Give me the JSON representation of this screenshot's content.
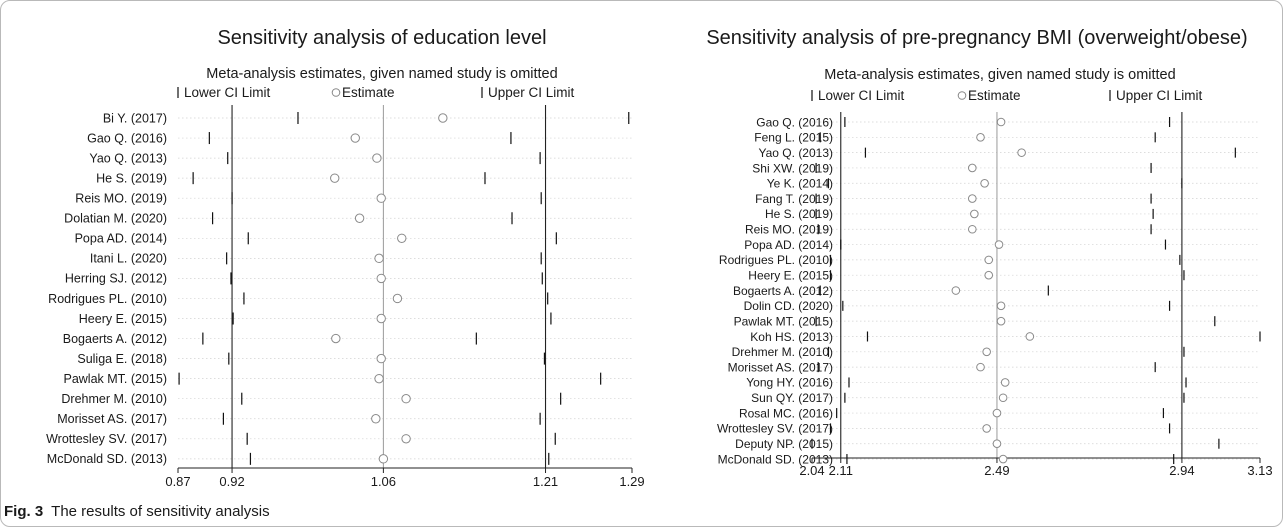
{
  "caption": {
    "label": "Fig. 3",
    "text": "The results of sensitivity analysis"
  },
  "chart_data": [
    {
      "type": "scatter",
      "title": "Sensitivity analysis of education level",
      "subtitle": "Meta-analysis estimates, given named study is omitted",
      "legend": [
        "Lower CI Limit",
        "Estimate",
        "Upper CI Limit"
      ],
      "legend_placement": "top",
      "xlim": [
        0.87,
        1.29
      ],
      "x_ticks": [
        "0.87",
        "0.92",
        "1.06",
        "1.21",
        "1.29"
      ],
      "x_tick_values": [
        0.87,
        0.92,
        1.06,
        1.21,
        1.29
      ],
      "reference_lines": [
        0.92,
        1.06,
        1.21
      ],
      "studies": [
        "Bi Y. (2017)",
        "Gao Q. (2016)",
        "Yao Q. (2013)",
        "He S. (2019)",
        "Reis MO. (2019)",
        "Dolatian M. (2020)",
        "Popa AD. (2014)",
        "Itani L. (2020)",
        "Herring SJ. (2012)",
        "Rodrigues PL. (2010)",
        "Heery E. (2015)",
        "Bogaerts A. (2012)",
        "Suliga E. (2018)",
        "Pawlak MT. (2015)",
        "Drehmer M. (2010)",
        "Morisset AS. (2017)",
        "Wrottesley SV. (2017)",
        "McDonald SD. (2013)"
      ],
      "lower": [
        0.981,
        0.899,
        0.916,
        0.884,
        0.92,
        0.902,
        0.935,
        0.915,
        0.919,
        0.931,
        0.921,
        0.893,
        0.917,
        0.871,
        0.929,
        0.912,
        0.934,
        0.937
      ],
      "estimate": [
        1.115,
        1.034,
        1.054,
        1.015,
        1.058,
        1.038,
        1.077,
        1.056,
        1.058,
        1.073,
        1.058,
        1.016,
        1.058,
        1.056,
        1.081,
        1.053,
        1.081,
        1.06
      ],
      "upper": [
        1.287,
        1.178,
        1.205,
        1.154,
        1.206,
        1.179,
        1.22,
        1.206,
        1.207,
        1.212,
        1.215,
        1.146,
        1.209,
        1.261,
        1.224,
        1.205,
        1.219,
        1.213
      ]
    },
    {
      "type": "scatter",
      "title": "Sensitivity analysis of pre-pregnancy BMI (overweight/obese)",
      "subtitle": "Meta-analysis estimates, given named study is omitted",
      "legend": [
        "Lower CI Limit",
        "Estimate",
        "Upper CI Limit"
      ],
      "legend_placement": "top",
      "xlim": [
        2.04,
        3.13
      ],
      "x_ticks": [
        "2.04",
        "2.11",
        "2.49",
        "2.94",
        "3.13"
      ],
      "x_tick_values": [
        2.04,
        2.11,
        2.49,
        2.94,
        3.13
      ],
      "reference_lines": [
        2.11,
        2.49,
        2.94
      ],
      "studies": [
        "Gao Q. (2016)",
        "Feng L. (2015)",
        "Yao Q. (2013)",
        "Shi XW. (2019)",
        "Ye K. (2014)",
        "Fang T. (2019)",
        "He S. (2019)",
        "Reis MO. (2019)",
        "Popa AD. (2014)",
        "Rodrigues PL. (2010)",
        "Heery E. (2015)",
        "Bogaerts A. (2012)",
        "Dolin CD. (2020)",
        "Pawlak MT. (2015)",
        "Koh HS. (2013)",
        "Drehmer M. (2010)",
        "Morisset AS. (2017)",
        "Yong HY. (2016)",
        "Sun QY. (2017)",
        "Rosal MC. (2016)",
        "Wrottesley SV. (2017)",
        "Deputy NP. (2015)",
        "McDonald SD. (2013)"
      ],
      "lower": [
        2.12,
        2.06,
        2.17,
        2.05,
        2.08,
        2.05,
        2.05,
        2.055,
        2.11,
        2.085,
        2.085,
        2.06,
        2.115,
        2.05,
        2.175,
        2.08,
        2.055,
        2.13,
        2.12,
        2.1,
        2.085,
        2.04,
        2.125
      ],
      "estimate": [
        2.5,
        2.45,
        2.55,
        2.43,
        2.46,
        2.43,
        2.435,
        2.43,
        2.495,
        2.47,
        2.47,
        2.39,
        2.5,
        2.5,
        2.57,
        2.465,
        2.45,
        2.51,
        2.505,
        2.49,
        2.465,
        2.49,
        2.505
      ],
      "upper": [
        2.91,
        2.875,
        3.07,
        2.865,
        2.94,
        2.865,
        2.87,
        2.865,
        2.9,
        2.935,
        2.945,
        2.615,
        2.91,
        3.02,
        3.13,
        2.945,
        2.875,
        2.95,
        2.945,
        2.895,
        2.91,
        3.03,
        2.92
      ]
    }
  ]
}
